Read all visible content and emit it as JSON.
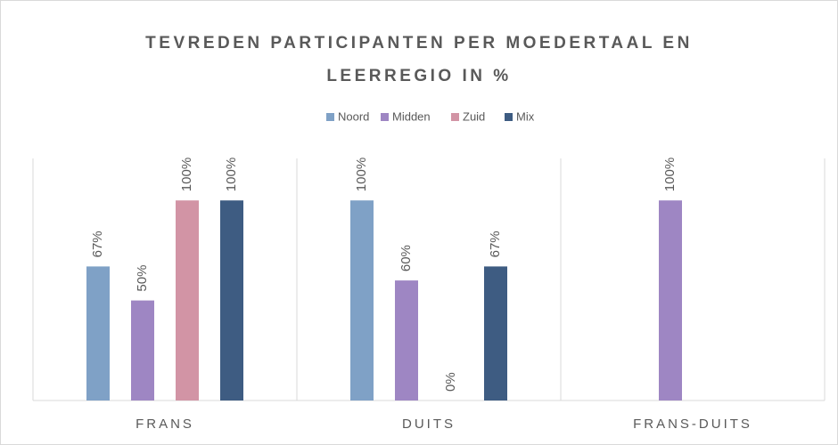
{
  "chart_data": {
    "type": "bar",
    "title": "TEVREDEN PARTICIPANTEN PER MOEDERTAAL EN LEERREGIO IN %",
    "categories": [
      "FRANS",
      "DUITS",
      "FRANS-DUITS"
    ],
    "series": [
      {
        "name": "Noord",
        "color": "#7fa1c6",
        "values": [
          67,
          100,
          null
        ],
        "value_labels": [
          "67%",
          "100%",
          null
        ]
      },
      {
        "name": "Midden",
        "color": "#9e86c3",
        "values": [
          50,
          60,
          100
        ],
        "value_labels": [
          "50%",
          "60%",
          "100%"
        ]
      },
      {
        "name": "Zuid",
        "color": "#d294a5",
        "values": [
          100,
          0,
          null
        ],
        "value_labels": [
          "100%",
          "0%",
          null
        ]
      },
      {
        "name": "Mix",
        "color": "#3e5c82",
        "values": [
          100,
          67,
          null
        ],
        "value_labels": [
          "100%",
          "67%",
          null
        ]
      }
    ],
    "ylim": [
      0,
      121
    ],
    "legend": "top"
  }
}
